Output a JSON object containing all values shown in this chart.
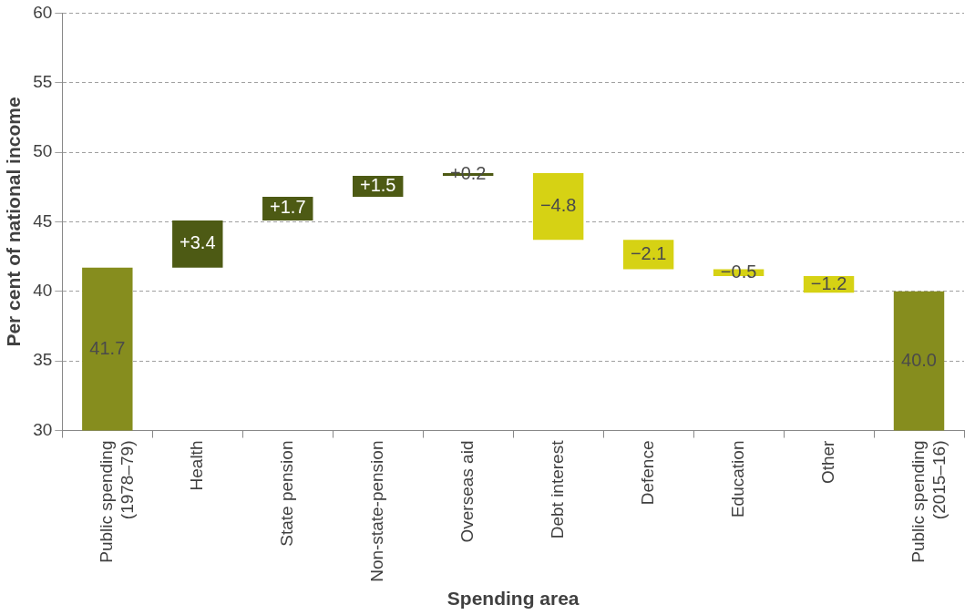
{
  "chart_data": {
    "type": "bar",
    "xlabel": "Spending area",
    "ylabel": "Per cent of national income",
    "categories": [
      "Public spending\n(1978–79)",
      "Health",
      "State pension",
      "Non-state-pension",
      "Overseas aid",
      "Debt interest",
      "Defence",
      "Education",
      "Other",
      "Public spending\n(2015–16)"
    ],
    "values": [
      41.7,
      3.4,
      1.7,
      1.5,
      0.2,
      -4.8,
      -2.1,
      -0.5,
      -1.2,
      40.0
    ],
    "base": [
      null,
      41.7,
      45.1,
      46.8,
      48.3,
      48.5,
      43.7,
      41.6,
      41.1,
      null
    ],
    "colors": [
      "#868d1e",
      "#4d5a14",
      "#4d5a14",
      "#4d5a14",
      "#4d5a14",
      "#d6d214",
      "#d6d214",
      "#d6d214",
      "#d6d214",
      "#868d1e"
    ],
    "value_labels": [
      "41.7",
      "+3.4",
      "+1.7",
      "+1.5",
      "+0.2",
      "−4.8",
      "−2.1",
      "−0.5",
      "−1.2",
      "40.0"
    ],
    "ylim": [
      30,
      60
    ],
    "yticks": [
      30,
      35,
      40,
      45,
      50,
      55,
      60
    ],
    "grid": "y",
    "legend": false
  }
}
